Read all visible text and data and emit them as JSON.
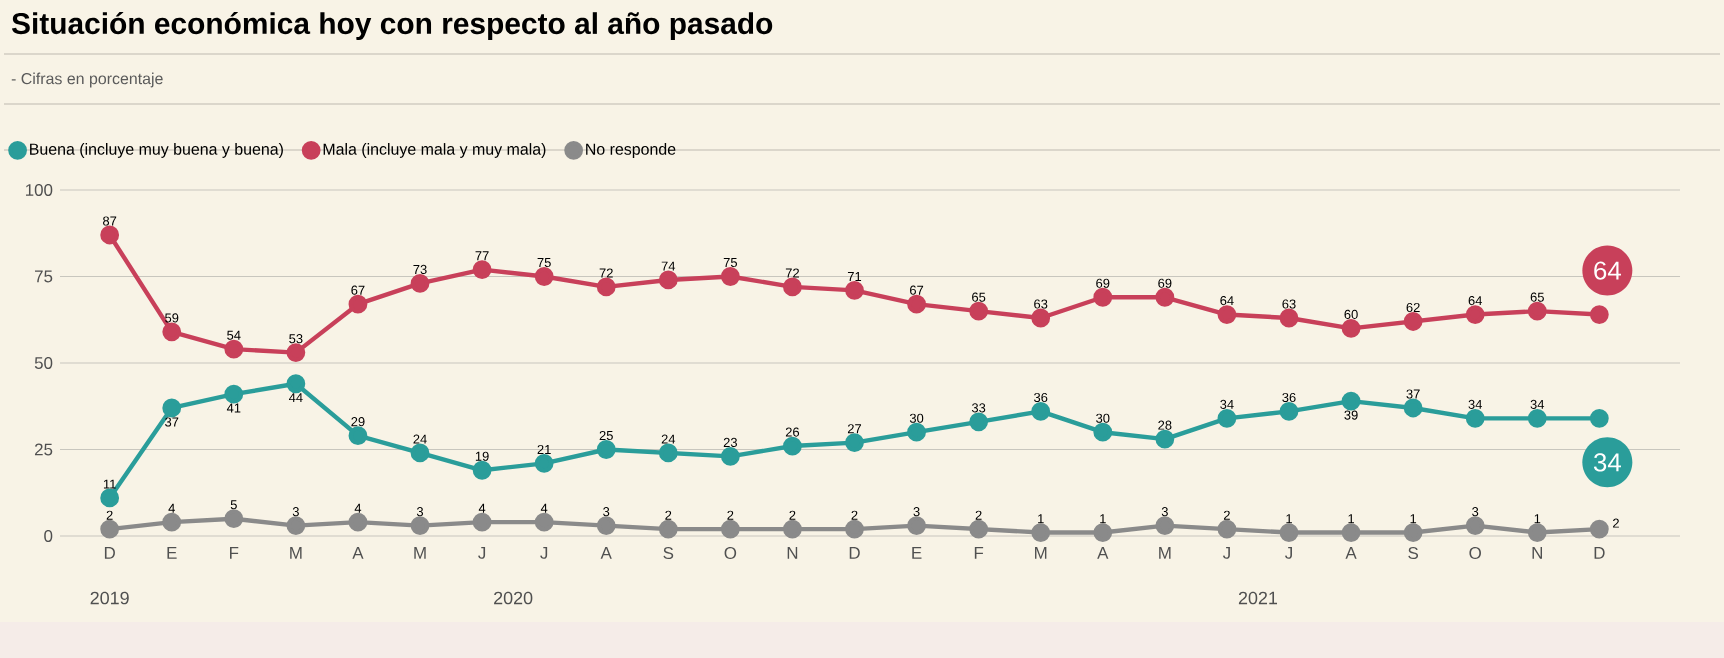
{
  "chart_data": {
    "type": "line",
    "title": "Situación económica hoy con respecto al año pasado",
    "subtitle": "- Cifras en porcentaje",
    "categories": [
      "D",
      "E",
      "F",
      "M",
      "A",
      "M",
      "J",
      "J",
      "A",
      "S",
      "O",
      "N",
      "D",
      "E",
      "F",
      "M",
      "A",
      "M",
      "J",
      "J",
      "A",
      "S",
      "O",
      "N",
      "D"
    ],
    "series": [
      {
        "name": "Buena (incluye muy buena y buena)",
        "color": "#2a9d9a",
        "values": [
          11,
          37,
          41,
          44,
          29,
          24,
          19,
          21,
          25,
          24,
          23,
          26,
          27,
          30,
          33,
          36,
          30,
          28,
          34,
          36,
          39,
          37,
          34,
          34,
          34
        ]
      },
      {
        "name": "Mala (incluye mala y muy mala)",
        "color": "#c8405a",
        "values": [
          87,
          59,
          54,
          53,
          67,
          73,
          77,
          75,
          72,
          74,
          75,
          72,
          71,
          67,
          65,
          63,
          69,
          69,
          64,
          63,
          60,
          62,
          64,
          65,
          64
        ]
      },
      {
        "name": "No responde",
        "color": "#8a8a8a",
        "values": [
          2,
          4,
          5,
          3,
          4,
          3,
          4,
          4,
          3,
          2,
          2,
          2,
          2,
          3,
          2,
          1,
          1,
          3,
          2,
          1,
          1,
          1,
          3,
          1,
          2
        ]
      }
    ],
    "annotations": [
      "2019",
      "2020",
      "2021"
    ],
    "ylim": [
      0,
      100
    ],
    "yticks": [
      0,
      25,
      50,
      75,
      100
    ],
    "grid": "y",
    "legend": "top",
    "marker": "circle",
    "line_style": "solid",
    "data_labels": true
  }
}
